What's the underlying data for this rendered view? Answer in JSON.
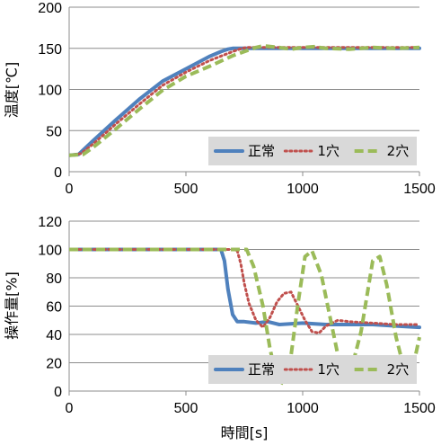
{
  "chart_data": [
    {
      "type": "line",
      "ylabel": "温度[℃]",
      "xlabel": "",
      "xlim": [
        0,
        1500
      ],
      "ylim": [
        0,
        200
      ],
      "xticks": [
        "0",
        "500",
        "1000",
        "1500"
      ],
      "yticks": [
        "0",
        "50",
        "100",
        "150",
        "200"
      ],
      "grid": "horizontal",
      "legend_position": "bottom-right",
      "series": [
        {
          "name": "正常",
          "color": "#4f81bd",
          "style": "solid",
          "x": [
            0,
            40,
            100,
            200,
            300,
            400,
            500,
            600,
            650,
            680,
            700,
            750,
            800,
            900,
            1000,
            1100,
            1200,
            1300,
            1400,
            1500
          ],
          "y": [
            20,
            21,
            37,
            63,
            88,
            110,
            125,
            140,
            146,
            149,
            150,
            150,
            150,
            150,
            150,
            150,
            150,
            150,
            150,
            150
          ]
        },
        {
          "name": "1穴",
          "color": "#c0504d",
          "style": "dotted",
          "x": [
            0,
            50,
            100,
            200,
            300,
            400,
            500,
            600,
            700,
            740,
            760,
            800,
            900,
            1000,
            1100,
            1200,
            1300,
            1400,
            1500
          ],
          "y": [
            20,
            22,
            33,
            58,
            82,
            105,
            121,
            135,
            146,
            150,
            151,
            151,
            151,
            151,
            151,
            151,
            151,
            151,
            151
          ]
        },
        {
          "name": "2穴",
          "color": "#9bbb59",
          "style": "dashed",
          "x": [
            0,
            60,
            100,
            200,
            300,
            400,
            500,
            600,
            700,
            800,
            830,
            900,
            950,
            1000,
            1050,
            1100,
            1200,
            1300,
            1400,
            1500
          ],
          "y": [
            20,
            21,
            29,
            52,
            76,
            99,
            116,
            128,
            141,
            151,
            153,
            151,
            149,
            151,
            152,
            150,
            149,
            151,
            150,
            151
          ]
        }
      ]
    },
    {
      "type": "line",
      "ylabel": "操作量[%]",
      "xlabel": "時間[s]",
      "xlim": [
        0,
        1500
      ],
      "ylim": [
        0,
        120
      ],
      "xticks": [
        "0",
        "500",
        "1000",
        "1500"
      ],
      "yticks": [
        "0",
        "20",
        "40",
        "60",
        "80",
        "100",
        "120"
      ],
      "grid": "horizontal",
      "legend_position": "bottom-right",
      "series": [
        {
          "name": "正常",
          "color": "#4f81bd",
          "style": "solid",
          "x": [
            0,
            500,
            650,
            665,
            680,
            700,
            720,
            750,
            800,
            850,
            900,
            1000,
            1100,
            1200,
            1300,
            1400,
            1500
          ],
          "y": [
            100,
            100,
            100,
            92,
            72,
            54,
            49,
            49,
            48,
            49,
            47,
            48,
            47,
            47,
            47,
            46,
            45
          ]
        },
        {
          "name": "1穴",
          "color": "#c0504d",
          "style": "dotted",
          "x": [
            0,
            500,
            700,
            720,
            735,
            750,
            770,
            800,
            830,
            860,
            890,
            920,
            950,
            980,
            1010,
            1040,
            1070,
            1100,
            1150,
            1200,
            1300,
            1400,
            1500
          ],
          "y": [
            100,
            100,
            100,
            99,
            90,
            76,
            62,
            50,
            45,
            52,
            63,
            69,
            70,
            60,
            50,
            42,
            41,
            46,
            50,
            49,
            48,
            47,
            47
          ]
        },
        {
          "name": "2穴",
          "color": "#9bbb59",
          "style": "dashed",
          "x": [
            0,
            500,
            760,
            790,
            830,
            860,
            890,
            920,
            950,
            980,
            1010,
            1040,
            1080,
            1120,
            1160,
            1200,
            1250,
            1300,
            1330,
            1360,
            1400,
            1440,
            1470,
            1500
          ],
          "y": [
            100,
            100,
            100,
            88,
            60,
            30,
            8,
            5,
            25,
            62,
            95,
            99,
            82,
            50,
            18,
            10,
            42,
            92,
            95,
            75,
            38,
            12,
            15,
            38
          ]
        }
      ]
    }
  ]
}
